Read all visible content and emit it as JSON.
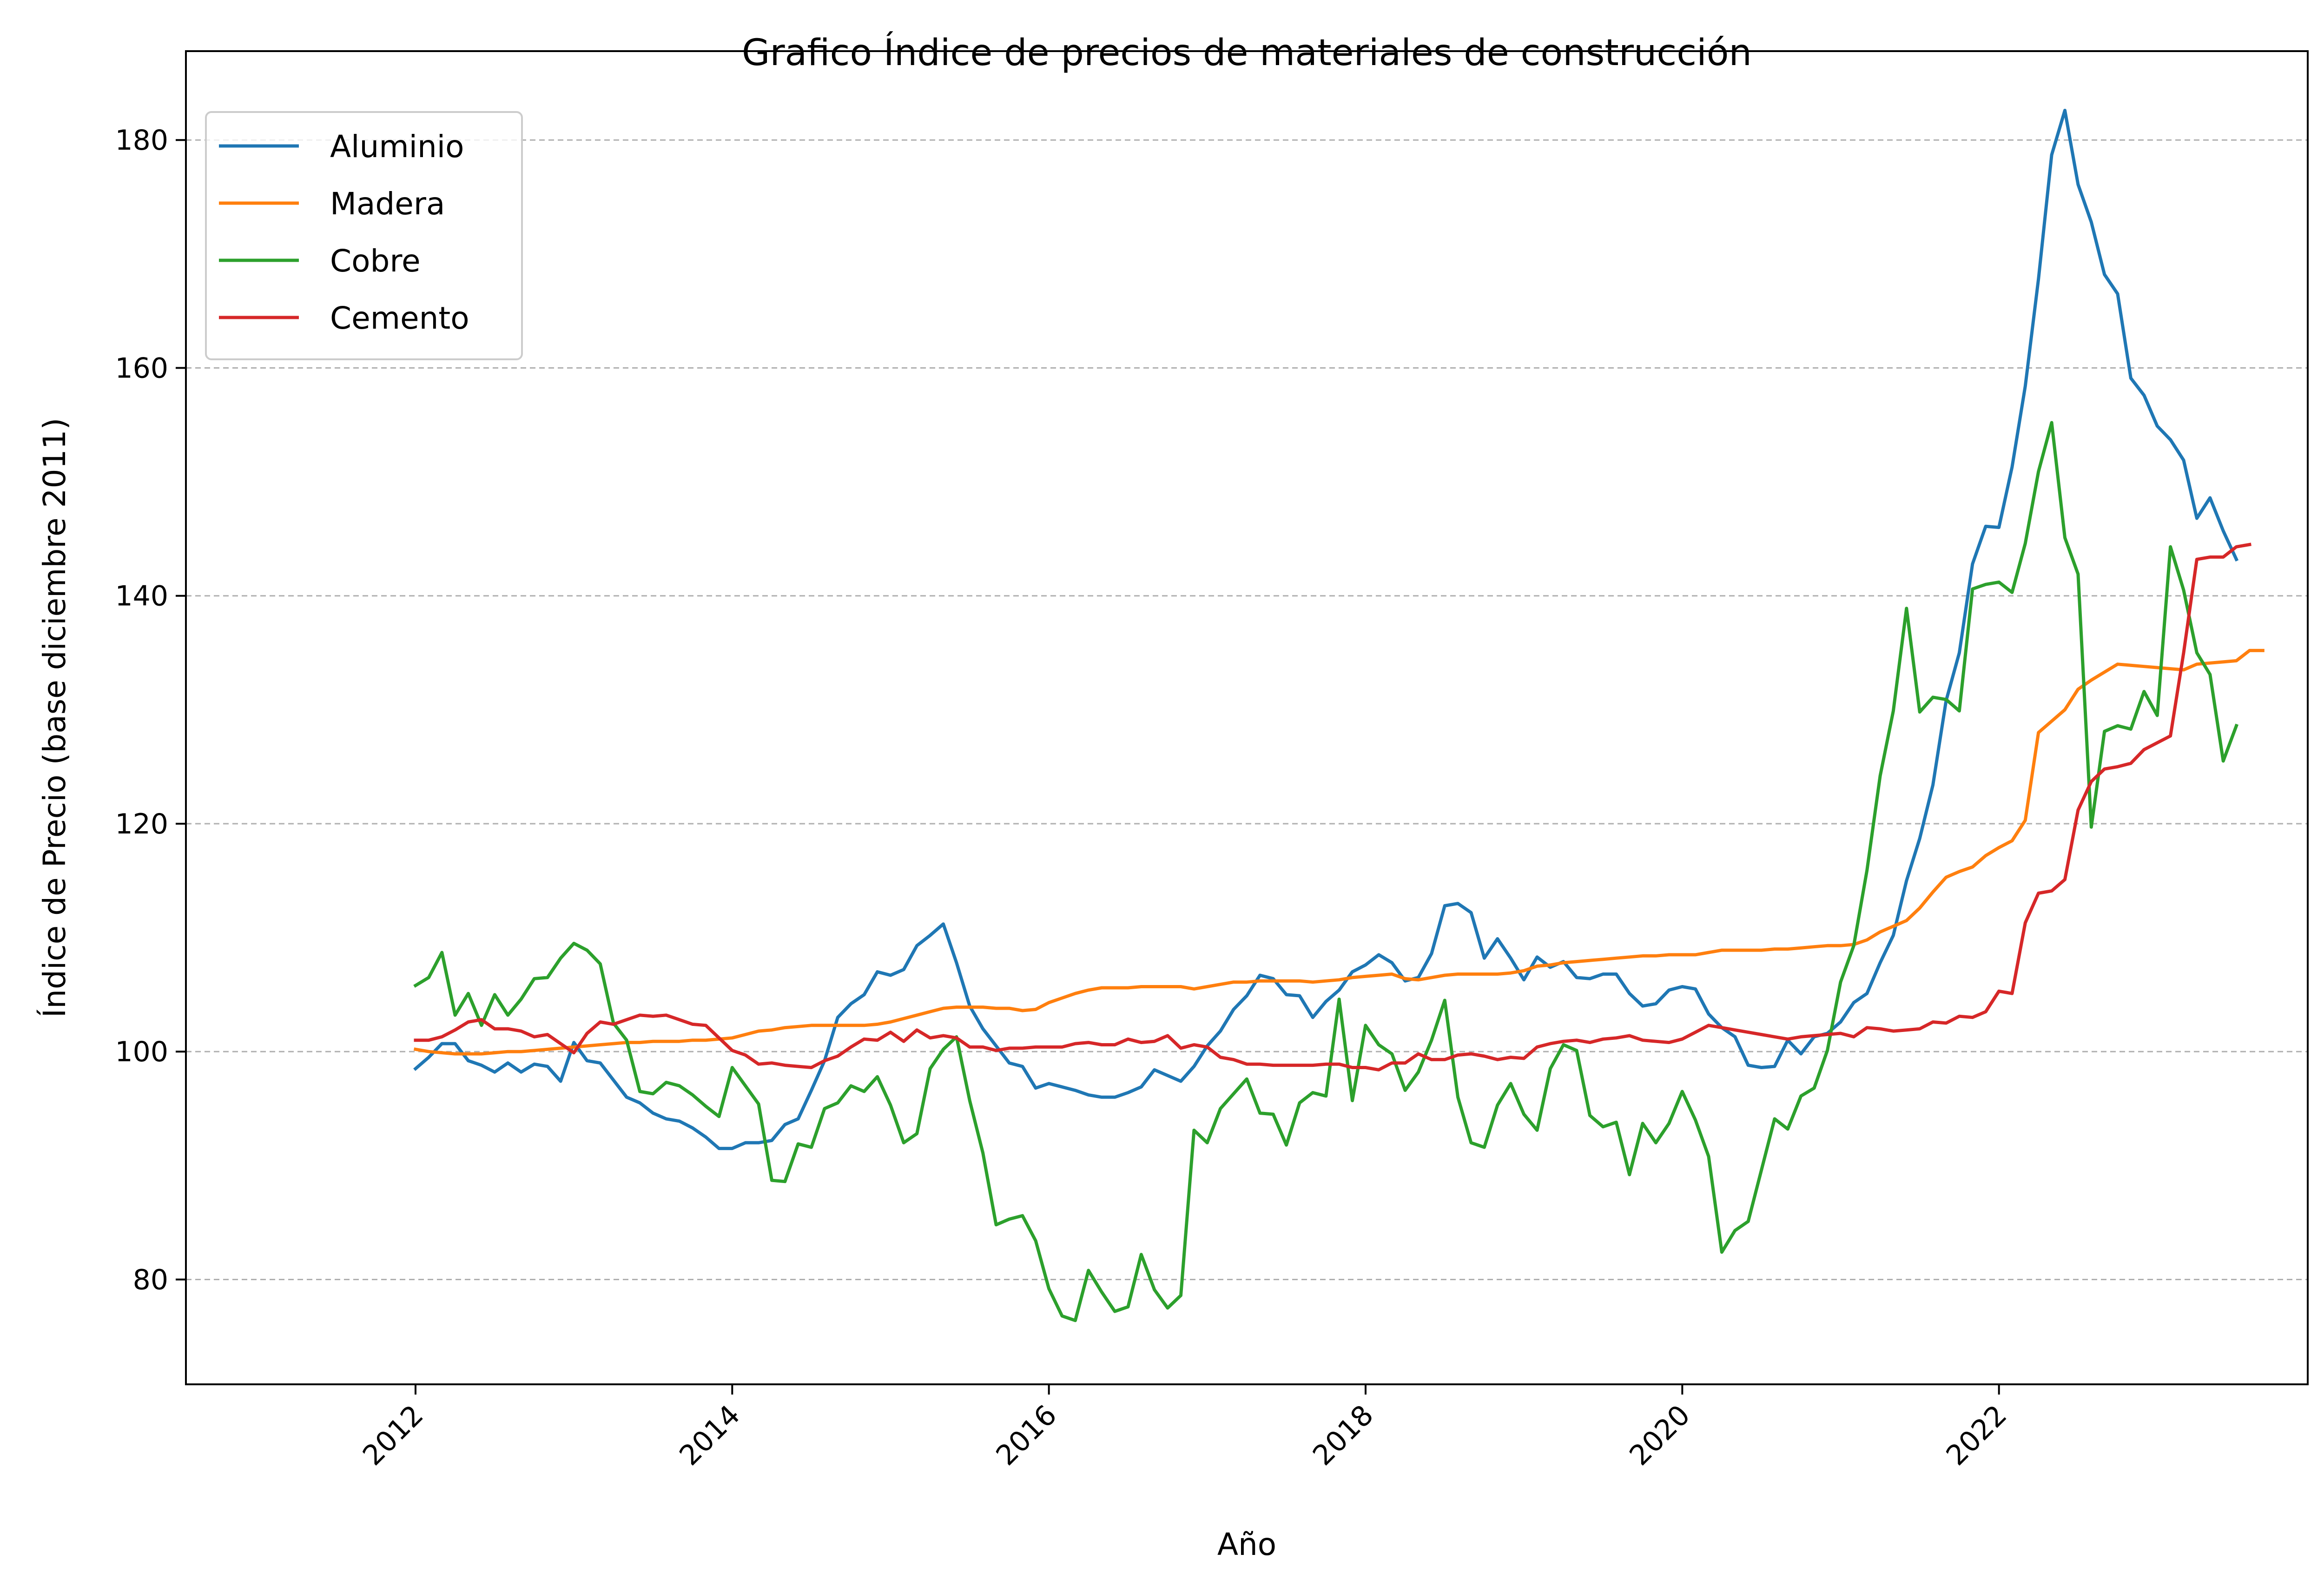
{
  "chart_data": {
    "type": "line",
    "title": "Grafico Índice de precios de materiales de construcción",
    "xlabel": "Año",
    "ylabel": "Índice de Precio (base diciembre 2011)",
    "xlim": [
      2010.55,
      2023.95
    ],
    "ylim": [
      70.8,
      187.8
    ],
    "x_ticks": [
      2012,
      2014,
      2016,
      2018,
      2020,
      2022
    ],
    "y_ticks": [
      80,
      100,
      120,
      140,
      160,
      180
    ],
    "grid": "y-only, dashed",
    "legend_position": "upper-left",
    "x_start": 2012.0,
    "x_step": 0.08333,
    "series": [
      {
        "name": "Aluminio",
        "color": "#1f77b4",
        "values": [
          98.5,
          99.5,
          100.7,
          100.7,
          99.2,
          98.8,
          98.2,
          99.0,
          98.2,
          98.9,
          98.7,
          97.4,
          100.8,
          99.2,
          99.0,
          97.5,
          96.0,
          95.5,
          94.6,
          94.1,
          93.9,
          93.3,
          92.5,
          91.5,
          91.5,
          92.0,
          92.0,
          92.2,
          93.6,
          94.1,
          96.6,
          99.2,
          103.0,
          104.2,
          105.0,
          107.0,
          106.7,
          107.2,
          109.3,
          110.2,
          111.2,
          107.8,
          104.0,
          102.0,
          100.5,
          99.0,
          98.7,
          96.8,
          97.2,
          96.9,
          96.6,
          96.2,
          96.0,
          96.0,
          96.4,
          96.9,
          98.4,
          97.9,
          97.4,
          98.7,
          100.5,
          101.8,
          103.7,
          104.9,
          106.7,
          106.4,
          105.0,
          104.9,
          103.0,
          104.4,
          105.4,
          107.0,
          107.6,
          108.5,
          107.8,
          106.2,
          106.5,
          108.6,
          112.8,
          113.0,
          112.2,
          108.2,
          109.9,
          108.2,
          106.3,
          108.3,
          107.4,
          107.9,
          106.5,
          106.4,
          106.8,
          106.8,
          105.1,
          104.0,
          104.2,
          105.4,
          105.7,
          105.5,
          103.3,
          102.1,
          101.3,
          98.8,
          98.6,
          98.7,
          101.0,
          99.8,
          101.3,
          101.6,
          102.6,
          104.3,
          105.1,
          107.8,
          110.2,
          115.0,
          118.7,
          123.4,
          130.8,
          135.0,
          142.8,
          146.1,
          146.0,
          151.3,
          158.4,
          167.8,
          178.7,
          182.6,
          176.1,
          172.8,
          168.2,
          166.5,
          159.1,
          157.6,
          154.9,
          153.7,
          151.9,
          146.8,
          148.6,
          145.7,
          143.2
        ]
      },
      {
        "name": "Madera",
        "color": "#ff7f0e",
        "values": [
          100.2,
          100.0,
          99.9,
          99.8,
          99.8,
          99.8,
          99.9,
          100.0,
          100.0,
          100.1,
          100.2,
          100.3,
          100.4,
          100.5,
          100.6,
          100.7,
          100.8,
          100.8,
          100.9,
          100.9,
          100.9,
          101.0,
          101.0,
          101.1,
          101.2,
          101.5,
          101.8,
          101.9,
          102.1,
          102.2,
          102.3,
          102.3,
          102.3,
          102.3,
          102.3,
          102.4,
          102.6,
          102.9,
          103.2,
          103.5,
          103.8,
          103.9,
          103.9,
          103.9,
          103.8,
          103.8,
          103.6,
          103.7,
          104.3,
          104.7,
          105.1,
          105.4,
          105.6,
          105.6,
          105.6,
          105.7,
          105.7,
          105.7,
          105.7,
          105.5,
          105.7,
          105.9,
          106.1,
          106.1,
          106.2,
          106.2,
          106.2,
          106.2,
          106.1,
          106.2,
          106.3,
          106.5,
          106.6,
          106.7,
          106.8,
          106.4,
          106.3,
          106.5,
          106.7,
          106.8,
          106.8,
          106.8,
          106.8,
          106.9,
          107.1,
          107.5,
          107.6,
          107.8,
          107.9,
          108.0,
          108.1,
          108.2,
          108.3,
          108.4,
          108.4,
          108.5,
          108.5,
          108.5,
          108.7,
          108.9,
          108.9,
          108.9,
          108.9,
          109.0,
          109.0,
          109.1,
          109.2,
          109.3,
          109.3,
          109.4,
          109.8,
          110.5,
          111.0,
          111.5,
          112.6,
          114.0,
          115.3,
          115.8,
          116.2,
          117.2,
          117.9,
          118.5,
          120.3,
          128.0,
          129.0,
          130.0,
          131.8,
          132.6,
          133.3,
          134.0,
          133.9,
          133.8,
          133.7,
          133.6,
          133.5,
          134.0,
          134.1,
          134.2,
          134.3,
          135.2,
          135.2
        ]
      },
      {
        "name": "Cobre",
        "color": "#2ca02c",
        "values": [
          105.8,
          106.5,
          108.7,
          103.2,
          105.1,
          102.3,
          105.0,
          103.2,
          104.6,
          106.4,
          106.5,
          108.2,
          109.5,
          108.9,
          107.7,
          102.5,
          101.0,
          96.5,
          96.3,
          97.3,
          97.0,
          96.2,
          95.2,
          94.3,
          98.6,
          97.0,
          95.4,
          88.7,
          88.6,
          91.9,
          91.6,
          95.0,
          95.5,
          97.0,
          96.5,
          97.8,
          95.3,
          92.0,
          92.8,
          98.5,
          100.2,
          101.3,
          95.7,
          91.1,
          84.8,
          85.3,
          85.6,
          83.4,
          79.2,
          76.8,
          76.4,
          80.8,
          78.9,
          77.2,
          77.6,
          82.2,
          79.1,
          77.5,
          78.6,
          93.1,
          92.0,
          95.0,
          96.3,
          97.6,
          94.6,
          94.5,
          91.8,
          95.5,
          96.4,
          96.1,
          104.6,
          95.7,
          102.3,
          100.6,
          99.8,
          96.6,
          98.2,
          101.0,
          104.5,
          96.0,
          92.0,
          91.6,
          95.3,
          97.2,
          94.5,
          93.1,
          98.5,
          100.6,
          100.1,
          94.4,
          93.4,
          93.8,
          89.2,
          93.7,
          92.0,
          93.7,
          96.5,
          94.0,
          90.8,
          82.4,
          84.3,
          85.1,
          89.6,
          94.1,
          93.2,
          96.1,
          96.8,
          100.1,
          106.1,
          109.3,
          115.9,
          124.2,
          129.9,
          138.9,
          129.8,
          131.1,
          130.9,
          129.9,
          140.6,
          141.0,
          141.2,
          140.3,
          144.6,
          150.9,
          155.2,
          145.1,
          141.9,
          119.7,
          128.1,
          128.6,
          128.3,
          131.6,
          129.5,
          144.3,
          140.5,
          135.0,
          133.1,
          125.5,
          128.6
        ]
      },
      {
        "name": "Cemento",
        "color": "#d62728",
        "values": [
          101.0,
          101.0,
          101.3,
          101.9,
          102.6,
          102.8,
          102.0,
          102.0,
          101.8,
          101.3,
          101.5,
          100.7,
          99.9,
          101.6,
          102.6,
          102.4,
          102.8,
          103.2,
          103.1,
          103.2,
          102.8,
          102.4,
          102.3,
          101.2,
          100.1,
          99.7,
          98.9,
          99.0,
          98.8,
          98.7,
          98.6,
          99.2,
          99.6,
          100.4,
          101.1,
          101.0,
          101.7,
          100.9,
          101.9,
          101.2,
          101.4,
          101.2,
          100.4,
          100.4,
          100.1,
          100.3,
          100.3,
          100.4,
          100.4,
          100.4,
          100.7,
          100.8,
          100.6,
          100.6,
          101.1,
          100.8,
          100.9,
          101.4,
          100.3,
          100.6,
          100.4,
          99.5,
          99.3,
          98.9,
          98.9,
          98.8,
          98.8,
          98.8,
          98.8,
          98.9,
          98.9,
          98.6,
          98.6,
          98.4,
          99.0,
          99.0,
          99.8,
          99.3,
          99.3,
          99.7,
          99.8,
          99.6,
          99.3,
          99.5,
          99.4,
          100.4,
          100.7,
          100.9,
          101.0,
          100.8,
          101.1,
          101.2,
          101.4,
          101.0,
          100.9,
          100.8,
          101.1,
          101.7,
          102.3,
          102.1,
          101.9,
          101.7,
          101.5,
          101.3,
          101.1,
          101.3,
          101.4,
          101.5,
          101.6,
          101.3,
          102.1,
          102.0,
          101.8,
          101.9,
          102.0,
          102.6,
          102.5,
          103.1,
          103.0,
          103.5,
          105.3,
          105.1,
          111.3,
          113.9,
          114.1,
          115.1,
          121.2,
          123.7,
          124.8,
          125.0,
          125.3,
          126.5,
          127.1,
          127.7,
          135.0,
          143.2,
          143.4,
          143.4,
          144.3,
          144.5
        ]
      }
    ]
  }
}
